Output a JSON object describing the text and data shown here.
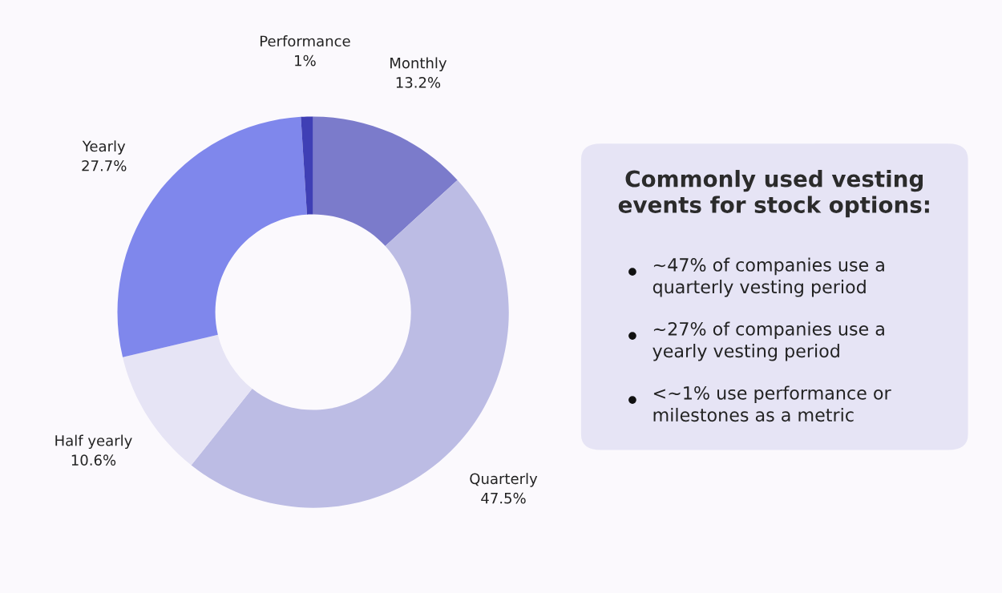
{
  "chart_data": [
    {
      "type": "donut",
      "categories": [
        "Monthly",
        "Quarterly",
        "Half yearly",
        "Yearly",
        "Performance"
      ],
      "values": [
        13.2,
        47.5,
        10.6,
        27.7,
        1
      ],
      "value_labels": [
        "13.2%",
        "47.5%",
        "10.6%",
        "27.7%",
        "1%"
      ],
      "colors": [
        "#7b7bcb",
        "#bcbce4",
        "#e6e4f5",
        "#7f87ec",
        "#3f3fb5"
      ]
    },
    {
      "type": "other",
      "title": "Commonly used vesting\nevents for stock options:",
      "annotations": [
        "~47% of companies use a\nquarterly vesting period",
        "~27% of companies use a\nyearly vesting period",
        "<~1% use performance or\nmilestones as a metric"
      ]
    }
  ]
}
